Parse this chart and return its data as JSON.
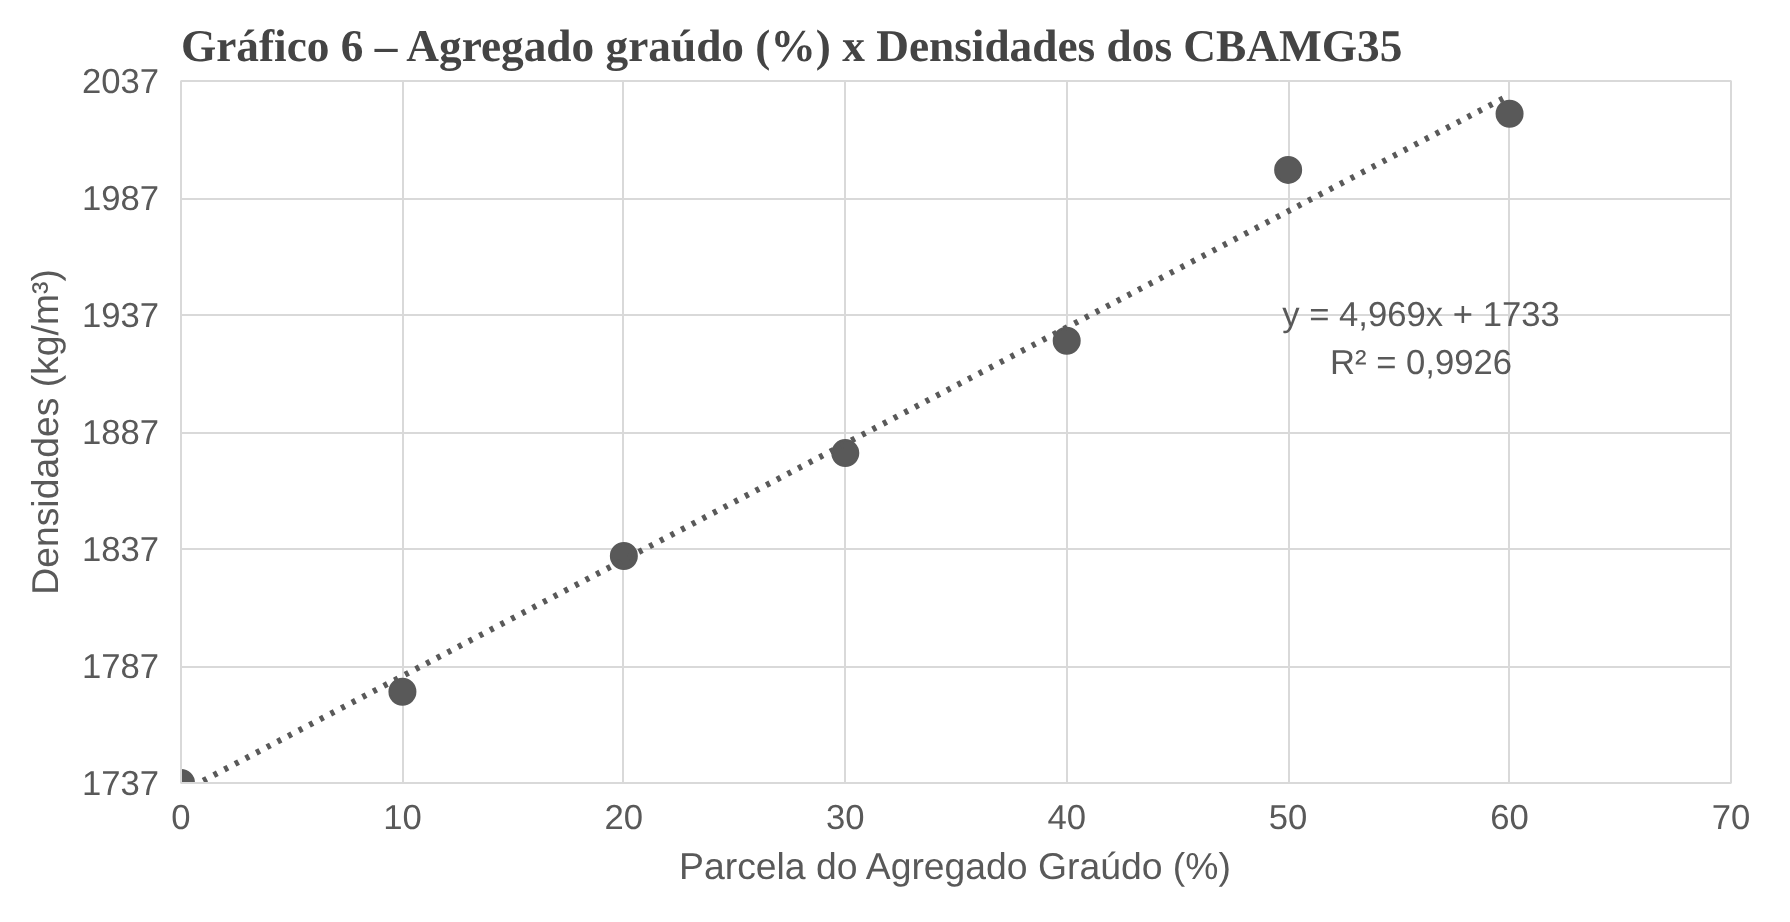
{
  "chart_data": {
    "type": "scatter",
    "title": "Gráfico 6 – Agregado graúdo (%) x Densidades dos CBAMG35",
    "xlabel": "Parcela do Agregado Graúdo (%)",
    "ylabel": "Densidades (kg/m³)",
    "series": [
      {
        "color": "#595959",
        "x": [
          0,
          10,
          20,
          30,
          40,
          50,
          60
        ],
        "values": [
          1737,
          1776,
          1834,
          1878,
          1926,
          1999,
          2023
        ],
        "marker": "circle"
      },
      {
        "type": "line",
        "color": "#595959",
        "x": [
          1,
          60
        ],
        "values": [
          1738,
          2031
        ],
        "line_style": "dotted"
      }
    ],
    "annotations": [
      "y = 4,969x + 1733",
      "R² = 0,9926"
    ],
    "xlim": [
      0,
      70
    ],
    "xticks": [
      0,
      10,
      20,
      30,
      40,
      50,
      60,
      70
    ],
    "ylim": [
      1737,
      2037
    ],
    "yticks": [
      1737,
      1787,
      1837,
      1887,
      1937,
      1987,
      2037
    ],
    "grid": true
  }
}
